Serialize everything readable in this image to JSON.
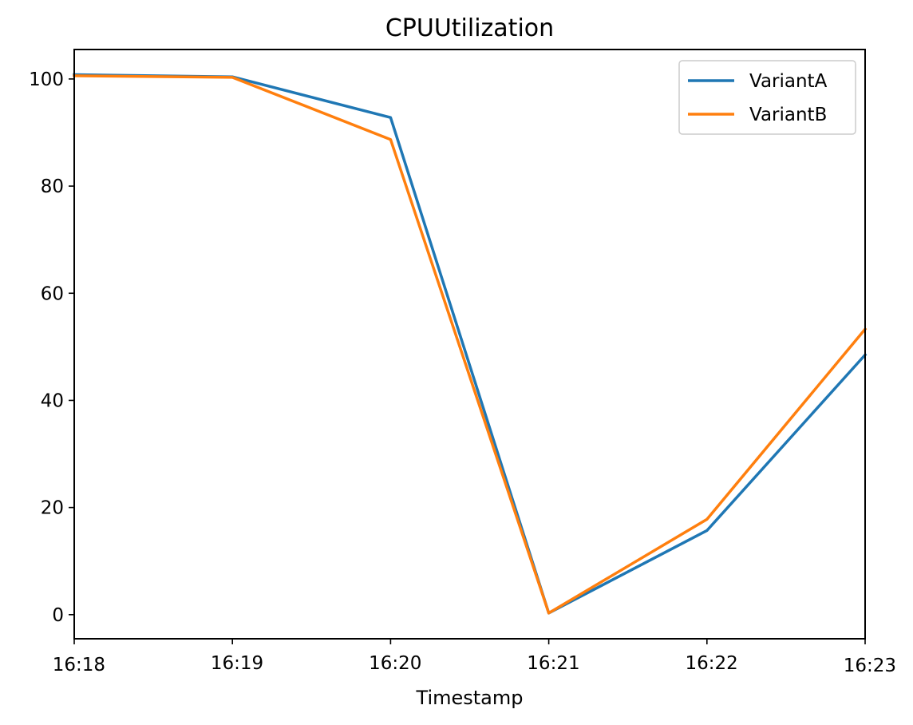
{
  "chart_data": {
    "type": "line",
    "title": "CPUUtilization",
    "xlabel": "Timestamp",
    "ylabel": "",
    "x": [
      "16:18",
      "16:19",
      "16:20",
      "16:21",
      "16:22",
      "16:23"
    ],
    "xlim": [
      "16:18",
      "16:23"
    ],
    "ylim": [
      -4.5,
      105.5
    ],
    "yticks": [
      0,
      20,
      40,
      60,
      80,
      100
    ],
    "grid": false,
    "legend_position": "top-right",
    "series": [
      {
        "name": "VariantA",
        "color": "#1f77b4",
        "values": [
          100.8,
          100.4,
          92.8,
          0.3,
          15.7,
          48.5
        ]
      },
      {
        "name": "VariantB",
        "color": "#ff7f0e",
        "values": [
          100.6,
          100.3,
          88.7,
          0.3,
          17.8,
          53.3
        ]
      }
    ]
  }
}
